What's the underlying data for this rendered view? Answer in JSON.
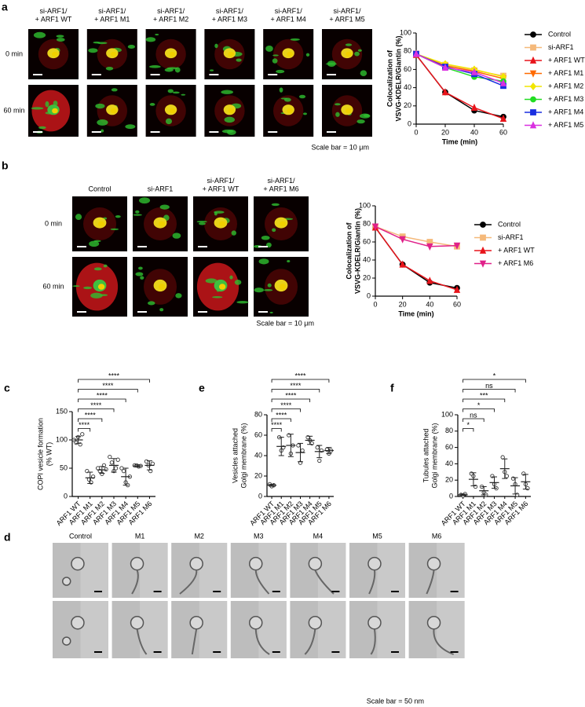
{
  "images": {
    "a": {
      "panel": "a",
      "columns": [
        [
          "si-ARF1/",
          "+ ARF1 WT"
        ],
        [
          "si-ARF1/",
          "+ ARF1 M1"
        ],
        [
          "si-ARF1/",
          "+ ARF1 M2"
        ],
        [
          "si-ARF1/",
          "+ ARF1 M3"
        ],
        [
          "si-ARF1/",
          "+ ARF1 M4"
        ],
        [
          "si-ARF1/",
          "+ ARF1 M5"
        ]
      ],
      "rows": [
        "0 min",
        "60 min"
      ],
      "scale": "Scale bar = 10 μm"
    },
    "b": {
      "panel": "b",
      "columns": [
        [
          "Control"
        ],
        [
          "si-ARF1"
        ],
        [
          "si-ARF1/",
          "+ ARF1 WT"
        ],
        [
          "si-ARF1/",
          "+ ARF1 M6"
        ]
      ],
      "rows": [
        "0 min",
        "60 min"
      ],
      "scale": "Scale bar = 10 μm"
    },
    "d": {
      "panel": "d",
      "columns": [
        [
          "Control"
        ],
        [
          "M1"
        ],
        [
          "M2"
        ],
        [
          "M3"
        ],
        [
          "M4"
        ],
        [
          "M5"
        ],
        [
          "M6"
        ]
      ],
      "rows": [],
      "scale": "Scale bar = 50 nm"
    }
  },
  "chart_data": [
    {
      "type": "line",
      "ylabel": [
        "Colocalization of",
        "VSVG-KDELR/Giantin (%)"
      ],
      "xlabel": "Time (min)",
      "x": [
        0,
        20,
        40,
        60
      ],
      "xlim": [
        0,
        60
      ],
      "xticks": [
        0,
        20,
        40,
        60
      ],
      "ylim": [
        0,
        100
      ],
      "yticks": [
        0,
        20,
        40,
        60,
        80,
        100
      ],
      "series": [
        {
          "name": "Control",
          "color": "#000000",
          "marker": "circle",
          "values": [
            76,
            35,
            15,
            8
          ]
        },
        {
          "name": "si-ARF1",
          "color": "#f5b97a",
          "marker": "square",
          "values": [
            77,
            65,
            59,
            53
          ]
        },
        {
          "name": "+ ARF1 WT",
          "color": "#e8141b",
          "marker": "triangle-up",
          "values": [
            76,
            35,
            18,
            6
          ]
        },
        {
          "name": "+ ARF1 M1",
          "color": "#ff6a00",
          "marker": "triangle-down",
          "values": [
            77,
            64,
            58,
            50
          ]
        },
        {
          "name": "+ ARF1 M2",
          "color": "#f2e600",
          "marker": "diamond",
          "values": [
            77,
            66,
            60,
            52
          ]
        },
        {
          "name": "+ ARF1 M3",
          "color": "#22dd22",
          "marker": "circle",
          "values": [
            77,
            62,
            52,
            47
          ]
        },
        {
          "name": "+ ARF1 M4",
          "color": "#1a2fe0",
          "marker": "square",
          "values": [
            77,
            63,
            55,
            42
          ]
        },
        {
          "name": "+ ARF1 M5",
          "color": "#d930e0",
          "marker": "triangle-up",
          "values": [
            77,
            62,
            57,
            45
          ]
        }
      ]
    },
    {
      "type": "line",
      "ylabel": [
        "Colocalization of",
        "VSVG-KDELR/Giantin (%)"
      ],
      "xlabel": "Time (min)",
      "x": [
        0,
        20,
        40,
        60
      ],
      "xlim": [
        0,
        60
      ],
      "xticks": [
        0,
        20,
        40,
        60
      ],
      "ylim": [
        0,
        100
      ],
      "yticks": [
        0,
        20,
        40,
        60,
        80,
        100
      ],
      "series": [
        {
          "name": "Control",
          "color": "#000000",
          "marker": "circle",
          "values": [
            76,
            35,
            15,
            9
          ]
        },
        {
          "name": "si-ARF1",
          "color": "#f5b97a",
          "marker": "square",
          "values": [
            77,
            66,
            60,
            55
          ]
        },
        {
          "name": "+ ARF1 WT",
          "color": "#e8141b",
          "marker": "triangle-up",
          "values": [
            76,
            35,
            17,
            7
          ]
        },
        {
          "name": "+ ARF1 M6",
          "color": "#e0218a",
          "marker": "triangle-down",
          "values": [
            77,
            63,
            55,
            56
          ]
        }
      ]
    },
    {
      "type": "dot",
      "panel": "c",
      "ylabel": [
        "COPI vesicle formation",
        "(% WT)"
      ],
      "categories": [
        "ARF1 WT",
        "ARF1 M1",
        "ARF1 M2",
        "ARF1 M3",
        "ARF1 M4",
        "ARF1 M5",
        "ARF1 M6"
      ],
      "points": [
        [
          100,
          95,
          105,
          92,
          110
        ],
        [
          45,
          30,
          25,
          35
        ],
        [
          50,
          45,
          40,
          55,
          48
        ],
        [
          70,
          60,
          45,
          50,
          65
        ],
        [
          50,
          45,
          25,
          20,
          35
        ],
        [
          55,
          55,
          53,
          54
        ],
        [
          62,
          55,
          45,
          58
        ]
      ],
      "means": [
        100,
        33,
        47,
        55,
        35,
        54,
        55
      ],
      "sd": [
        6,
        10,
        6,
        12,
        15,
        2,
        8
      ],
      "comparisons": [
        "****",
        "****",
        "****",
        "****",
        "****",
        "****"
      ],
      "ylim": [
        0,
        150
      ],
      "yticks": [
        0,
        50,
        100,
        150
      ]
    },
    {
      "type": "dot",
      "panel": "e",
      "ylabel": [
        "Vesicles attached",
        "Golgi membrane (%)"
      ],
      "categories": [
        "ARF1 WT",
        "ARF1 M1",
        "ARF1 M2",
        "ARF1 M3",
        "ARF1 M4",
        "ARF1 M5",
        "ARF1 M6"
      ],
      "points": [
        [
          12,
          10,
          11
        ],
        [
          58,
          45,
          48
        ],
        [
          60,
          42,
          50
        ],
        [
          50,
          33,
          45
        ],
        [
          58,
          55,
          52
        ],
        [
          48,
          35,
          45
        ],
        [
          46,
          42,
          45
        ]
      ],
      "means": [
        11,
        49,
        50,
        43,
        55,
        44,
        45
      ],
      "sd": [
        1,
        9,
        11,
        9,
        4,
        6,
        3
      ],
      "comparisons": [
        "****",
        "****",
        "****",
        "****",
        "****",
        "****"
      ],
      "ylim": [
        0,
        80
      ],
      "yticks": [
        0,
        20,
        40,
        60,
        80
      ]
    },
    {
      "type": "dot",
      "panel": "f",
      "ylabel": [
        "Tubules attached",
        "Golgi membrane (%)"
      ],
      "categories": [
        "ARF1 WT",
        "ARF1 M1",
        "ARF1 M2",
        "ARF1 M3",
        "ARF1 M4",
        "ARF1 M5",
        "ARF1 M6"
      ],
      "points": [
        [
          2,
          1,
          3
        ],
        [
          28,
          25,
          12
        ],
        [
          12,
          5,
          2
        ],
        [
          25,
          15,
          10
        ],
        [
          48,
          30,
          25
        ],
        [
          22,
          15,
          2
        ],
        [
          28,
          15,
          10
        ]
      ],
      "means": [
        2,
        21,
        7,
        17,
        34,
        13,
        18
      ],
      "sd": [
        1,
        8,
        5,
        7,
        12,
        10,
        9
      ],
      "comparisons": [
        "*",
        "ns",
        "*",
        "***",
        "ns",
        "*"
      ],
      "ylim": [
        0,
        100
      ],
      "yticks": [
        0,
        20,
        40,
        60,
        80,
        100
      ]
    }
  ]
}
